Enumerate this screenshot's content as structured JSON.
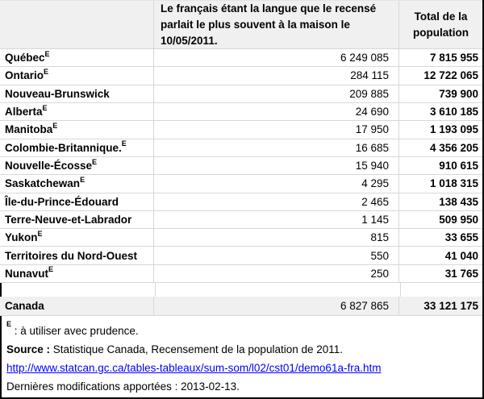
{
  "colors": {
    "header_bg": "#F0F0F0",
    "total_row_bg": "#F0F0F0",
    "grid_line": "#D8D8D8",
    "outer_border": "#000000",
    "link": "#0000FF"
  },
  "table": {
    "header": {
      "province": "",
      "french": "Le français étant la langue que le recensé parlait le plus souvent à la maison le 10/05/2011.",
      "total": "Total de la population"
    },
    "rows": [
      {
        "label": "Québec",
        "sup": "E",
        "value": "6 249 085",
        "total": "7 815 955"
      },
      {
        "label": "Ontario",
        "sup": "E",
        "value": "284 115",
        "total": "12 722 065"
      },
      {
        "label": "Nouveau-Brunswick",
        "sup": "",
        "value": "209 885",
        "total": "739 900"
      },
      {
        "label": "Alberta ",
        "sup": "E",
        "value": "24 690",
        "total": "3 610 185"
      },
      {
        "label": "Manitoba",
        "sup": "E",
        "value": "17 950",
        "total": "1 193 095"
      },
      {
        "label": "Colombie-Britannique.",
        "sup": "E",
        "value": "16 685",
        "total": "4 356 205"
      },
      {
        "label": "Nouvelle-Écosse",
        "sup": "E",
        "value": "15 940",
        "total": "910 615"
      },
      {
        "label": "Saskatchewan",
        "sup": "E",
        "value": "4 295",
        "total": "1 018 315"
      },
      {
        "label": "Île-du-Prince-Édouard",
        "sup": "",
        "value": "2 465",
        "total": "138 435"
      },
      {
        "label": "Terre-Neuve-et-Labrador",
        "sup": "",
        "value": "1 145",
        "total": "509 950"
      },
      {
        "label": "Yukon",
        "sup": "E",
        "value": "815",
        "total": "33 655"
      },
      {
        "label": "Territoires du Nord-Ouest",
        "sup": "",
        "value": "550",
        "total": "41 040"
      },
      {
        "label": "Nunavut",
        "sup": "E",
        "value": "250",
        "total": "31 765"
      }
    ],
    "total_row": {
      "label": "Canada",
      "value": "6 827 865",
      "total": "33 121 175"
    }
  },
  "footnotes": {
    "note_sup": "E",
    "note_text": " : à utiliser avec prudence.",
    "source_label": "Source :",
    "source_text": " Statistique Canada, Recensement de la population de 2011.",
    "link": "http://www.statcan.gc.ca/tables-tableaux/sum-som/l02/cst01/demo61a-fra.htm",
    "modified": "Dernières modifications apportées : 2013-02-13."
  },
  "chart_data": {
    "type": "table",
    "title": "",
    "columns": [
      "",
      "Le français étant la langue que le recensé parlait le plus souvent à la maison le 10/05/2011.",
      "Total de la population"
    ],
    "rows": [
      [
        "Québec",
        6249085,
        7815955
      ],
      [
        "Ontario",
        284115,
        12722065
      ],
      [
        "Nouveau-Brunswick",
        209885,
        739900
      ],
      [
        "Alberta",
        24690,
        3610185
      ],
      [
        "Manitoba",
        17950,
        1193095
      ],
      [
        "Colombie-Britannique",
        16685,
        4356205
      ],
      [
        "Nouvelle-Écosse",
        15940,
        910615
      ],
      [
        "Saskatchewan",
        4295,
        1018315
      ],
      [
        "Île-du-Prince-Édouard",
        2465,
        138435
      ],
      [
        "Terre-Neuve-et-Labrador",
        1145,
        509950
      ],
      [
        "Yukon",
        815,
        33655
      ],
      [
        "Territoires du Nord-Ouest",
        550,
        41040
      ],
      [
        "Nunavut",
        250,
        31765
      ]
    ],
    "total_row": [
      "Canada",
      6827865,
      33121175
    ],
    "notes": [
      "E : à utiliser avec prudence.",
      "Source : Statistique Canada, Recensement de la population de 2011.",
      "http://www.statcan.gc.ca/tables-tableaux/sum-som/l02/cst01/demo61a-fra.htm",
      "Dernières modifications apportées : 2013-02-13."
    ]
  }
}
